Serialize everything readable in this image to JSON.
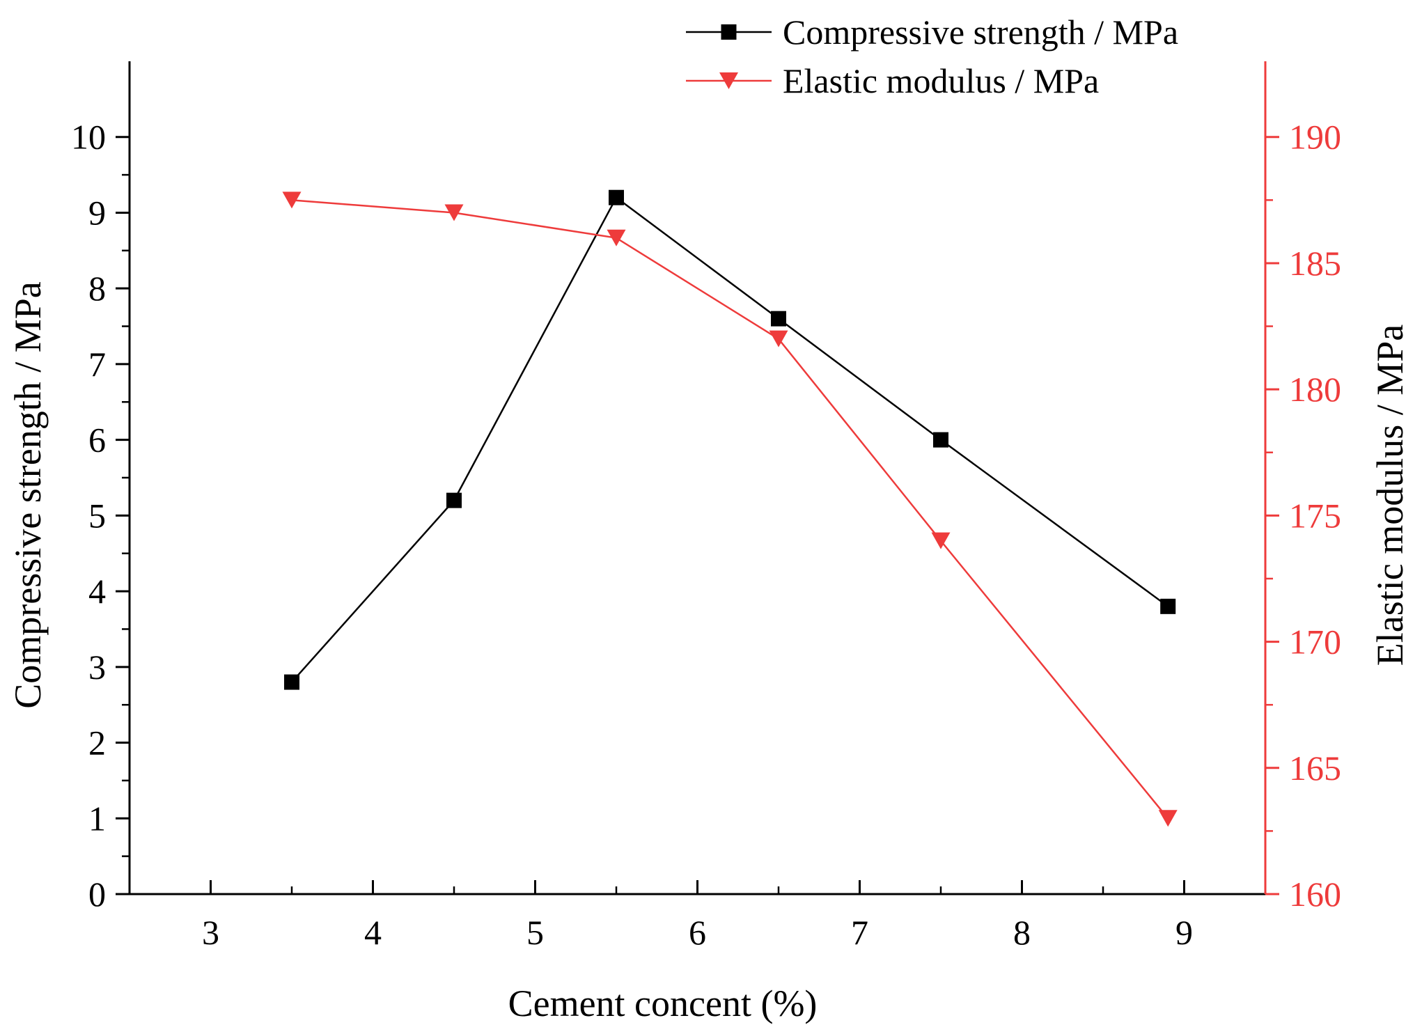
{
  "chart_data": {
    "type": "line",
    "title": "",
    "xlabel": "Cement concent (%)",
    "ylabel": "Compressive strength / MPa",
    "ylabel_right": "Elastic modulus / MPa",
    "xlim": [
      2.5,
      9.5
    ],
    "ylim": [
      0,
      11
    ],
    "ylim_right": [
      160,
      193
    ],
    "x_ticks": [
      3,
      4,
      5,
      6,
      7,
      8,
      9
    ],
    "x_tick_labels": [
      "3",
      "4",
      "5",
      "6",
      "7",
      "8",
      "9"
    ],
    "y_ticks": [
      0,
      1,
      2,
      3,
      4,
      5,
      6,
      7,
      8,
      9,
      10
    ],
    "y_tick_labels": [
      "0",
      "1",
      "2",
      "3",
      "4",
      "5",
      "6",
      "7",
      "8",
      "9",
      "10"
    ],
    "y_right_ticks": [
      160,
      165,
      170,
      175,
      180,
      185,
      190
    ],
    "y_right_tick_labels": [
      "160",
      "165",
      "170",
      "175",
      "180",
      "185",
      "190"
    ],
    "grid": false,
    "legend_position": "top-right",
    "series": [
      {
        "name": "Compressive strength / MPa",
        "axis": "left",
        "marker": "square",
        "color": "#000000",
        "x": [
          3.5,
          4.5,
          5.5,
          6.5,
          7.5,
          8.9
        ],
        "values": [
          2.8,
          5.2,
          9.2,
          7.6,
          6.0,
          3.8
        ]
      },
      {
        "name": "Elastic modulus / MPa",
        "axis": "right",
        "marker": "triangle-down",
        "color": "#ee3b3b",
        "x": [
          3.5,
          4.5,
          5.5,
          6.5,
          7.5,
          8.9
        ],
        "values": [
          187.5,
          187.0,
          186.0,
          182.0,
          174.0,
          163.0
        ]
      }
    ]
  }
}
